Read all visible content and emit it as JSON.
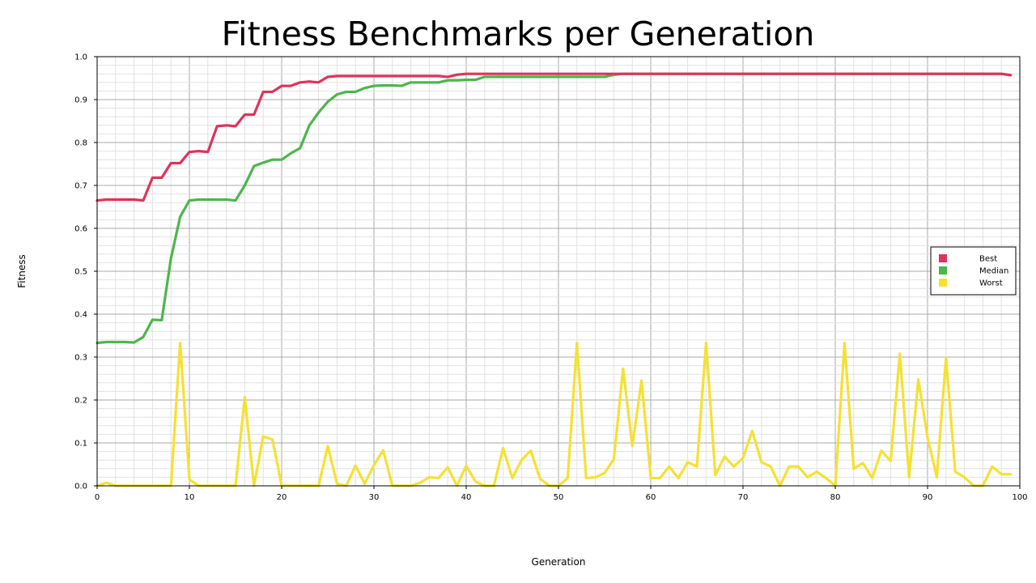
{
  "chart_data": {
    "type": "line",
    "title": "Fitness Benchmarks per Generation",
    "xlabel": "Generation",
    "ylabel": "Fitness",
    "xlim": [
      0,
      100
    ],
    "ylim": [
      0,
      1
    ],
    "x_ticks": [
      "0",
      "10",
      "20",
      "30",
      "40",
      "50",
      "60",
      "70",
      "80",
      "90",
      "100"
    ],
    "y_ticks": [
      "0.0",
      "0.1",
      "0.2",
      "0.3",
      "0.4",
      "0.5",
      "0.6",
      "0.7",
      "0.8",
      "0.9",
      "1.0"
    ],
    "grid": true,
    "legend_position": "right",
    "x": [
      0,
      1,
      2,
      3,
      4,
      5,
      6,
      7,
      8,
      9,
      10,
      11,
      12,
      13,
      14,
      15,
      16,
      17,
      18,
      19,
      20,
      21,
      22,
      23,
      24,
      25,
      26,
      27,
      28,
      29,
      30,
      31,
      32,
      33,
      34,
      35,
      36,
      37,
      38,
      39,
      40,
      41,
      42,
      43,
      44,
      45,
      46,
      47,
      48,
      49,
      50,
      51,
      52,
      53,
      54,
      55,
      56,
      57,
      58,
      59,
      60,
      61,
      62,
      63,
      64,
      65,
      66,
      67,
      68,
      69,
      70,
      71,
      72,
      73,
      74,
      75,
      76,
      77,
      78,
      79,
      80,
      81,
      82,
      83,
      84,
      85,
      86,
      87,
      88,
      89,
      90,
      91,
      92,
      93,
      94,
      95,
      96,
      97,
      98,
      99
    ],
    "series": [
      {
        "name": "Best",
        "color": "#e0325a",
        "values": [
          0.665,
          0.667,
          0.667,
          0.667,
          0.667,
          0.665,
          0.718,
          0.718,
          0.752,
          0.752,
          0.778,
          0.78,
          0.778,
          0.838,
          0.84,
          0.838,
          0.865,
          0.865,
          0.918,
          0.918,
          0.932,
          0.932,
          0.94,
          0.942,
          0.94,
          0.953,
          0.955,
          0.955,
          0.955,
          0.955,
          0.955,
          0.955,
          0.955,
          0.955,
          0.955,
          0.955,
          0.955,
          0.955,
          0.953,
          0.958,
          0.96,
          0.96,
          0.96,
          0.96,
          0.96,
          0.96,
          0.96,
          0.96,
          0.96,
          0.96,
          0.96,
          0.96,
          0.96,
          0.96,
          0.96,
          0.96,
          0.96,
          0.96,
          0.96,
          0.96,
          0.96,
          0.96,
          0.96,
          0.96,
          0.96,
          0.96,
          0.96,
          0.96,
          0.96,
          0.96,
          0.96,
          0.96,
          0.96,
          0.96,
          0.96,
          0.96,
          0.96,
          0.96,
          0.96,
          0.96,
          0.96,
          0.96,
          0.96,
          0.96,
          0.96,
          0.96,
          0.96,
          0.96,
          0.96,
          0.96,
          0.96,
          0.96,
          0.96,
          0.96,
          0.96,
          0.96,
          0.96,
          0.96,
          0.96,
          0.957
        ]
      },
      {
        "name": "Median",
        "color": "#4cb64c",
        "values": [
          0.333,
          0.335,
          0.335,
          0.335,
          0.334,
          0.347,
          0.387,
          0.386,
          0.53,
          0.627,
          0.665,
          0.667,
          0.667,
          0.667,
          0.667,
          0.665,
          0.7,
          0.745,
          0.753,
          0.76,
          0.76,
          0.775,
          0.787,
          0.84,
          0.87,
          0.895,
          0.912,
          0.918,
          0.918,
          0.927,
          0.932,
          0.933,
          0.933,
          0.932,
          0.94,
          0.94,
          0.94,
          0.94,
          0.945,
          0.945,
          0.946,
          0.946,
          0.953,
          0.953,
          0.953,
          0.953,
          0.953,
          0.953,
          0.953,
          0.953,
          0.953,
          0.953,
          0.953,
          0.953,
          0.953,
          0.953,
          0.958,
          0.96,
          0.96,
          0.96,
          0.96,
          0.96,
          0.96,
          0.96,
          0.96,
          0.96,
          0.96,
          0.96,
          0.96,
          0.96,
          0.96,
          0.96,
          0.96,
          0.96,
          0.96,
          0.96,
          0.96,
          0.96,
          0.96,
          0.96,
          0.96,
          0.96,
          0.96,
          0.96,
          0.96,
          0.96,
          0.96,
          0.96,
          0.96,
          0.96,
          0.96,
          0.96,
          0.96,
          0.96,
          0.96,
          0.96,
          0.96,
          0.96,
          0.96,
          0.957
        ]
      },
      {
        "name": "Worst",
        "color": "#f5e133",
        "values": [
          0.0,
          0.007,
          0.0,
          0.0,
          0.0,
          0.0,
          0.0,
          0.0,
          0.0,
          0.333,
          0.015,
          0.0,
          0.0,
          0.0,
          0.0,
          0.0,
          0.207,
          0.0,
          0.115,
          0.108,
          0.0,
          0.0,
          0.0,
          0.0,
          0.0,
          0.093,
          0.005,
          0.0,
          0.047,
          0.005,
          0.048,
          0.083,
          0.0,
          0.0,
          0.0,
          0.007,
          0.02,
          0.018,
          0.043,
          0.0,
          0.047,
          0.01,
          0.0,
          0.0,
          0.088,
          0.018,
          0.06,
          0.082,
          0.017,
          0.0,
          0.0,
          0.018,
          0.333,
          0.018,
          0.02,
          0.03,
          0.062,
          0.273,
          0.093,
          0.245,
          0.018,
          0.018,
          0.045,
          0.018,
          0.055,
          0.045,
          0.333,
          0.025,
          0.068,
          0.045,
          0.065,
          0.128,
          0.055,
          0.045,
          0.0,
          0.045,
          0.045,
          0.02,
          0.033,
          0.018,
          0.0,
          0.333,
          0.04,
          0.053,
          0.018,
          0.082,
          0.058,
          0.308,
          0.02,
          0.248,
          0.113,
          0.02,
          0.298,
          0.033,
          0.02,
          0.0,
          0.0,
          0.045,
          0.027,
          0.027
        ]
      }
    ]
  }
}
